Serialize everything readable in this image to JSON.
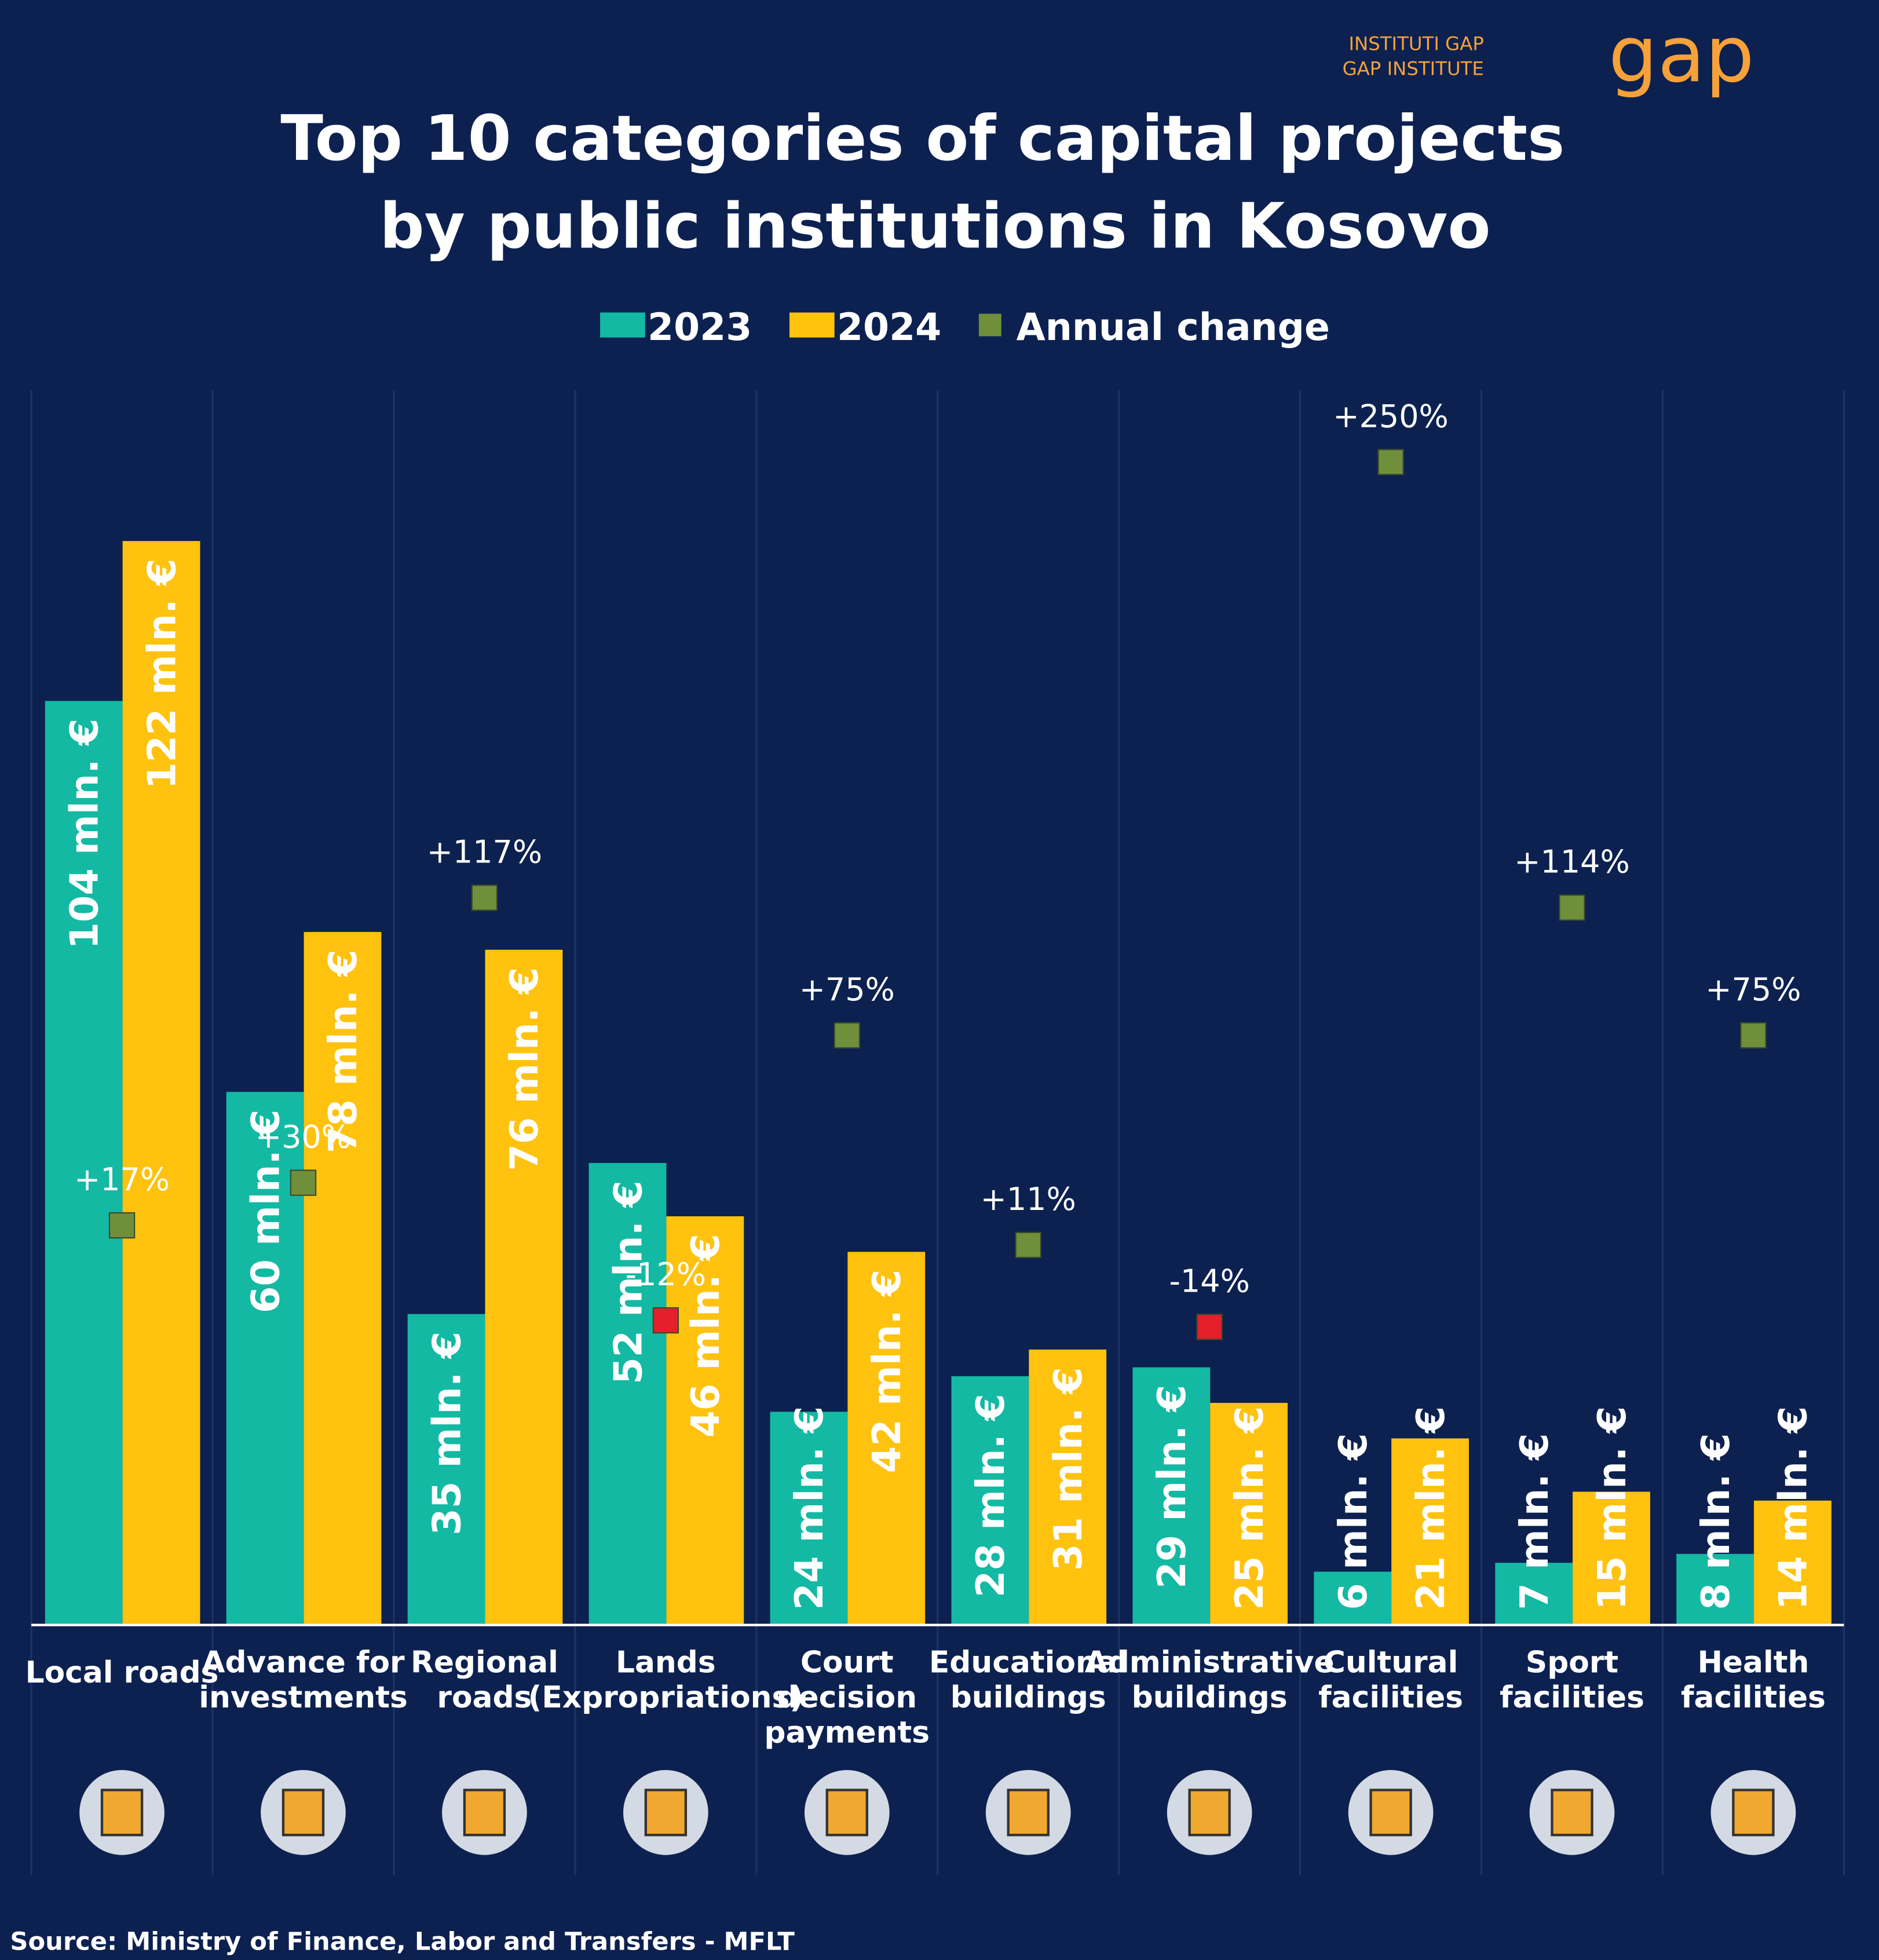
{
  "chart_data": {
    "type": "bar",
    "title": [
      "Top 10 categories of capital projects",
      "by public institutions in Kosovo"
    ],
    "logo": {
      "lines": [
        "INSTITUTI GAP",
        "GAP INSTITUTE"
      ],
      "mark": "gap"
    },
    "source": "Source: Ministry of Finance, Labor and Transfers - MFLT",
    "categories": [
      [
        "Local roads"
      ],
      [
        "Advance for",
        "investments"
      ],
      [
        "Regional",
        "roads"
      ],
      [
        "Lands",
        "(Expropriations)"
      ],
      [
        "Court",
        "decision",
        "payments"
      ],
      [
        "Educational",
        "buildings"
      ],
      [
        "Administrative",
        "buildings"
      ],
      [
        "Cultural",
        "facilities"
      ],
      [
        "Sport",
        "facilities"
      ],
      [
        "Health",
        "facilities"
      ]
    ],
    "series": [
      {
        "name": "2023",
        "color": "#13b9a3",
        "values": [
          104,
          60,
          35,
          52,
          24,
          28,
          29,
          6,
          7,
          8
        ],
        "value_labels": [
          "104 mln. €",
          "60 mln. €",
          "35 mln. €",
          "52 mln. €",
          "24 mln. €",
          "28 mln. €",
          "29 mln. €",
          "6 mln. €",
          "7 mln. €",
          "8 mln. €"
        ]
      },
      {
        "name": "2024",
        "color": "#ffc20e",
        "values": [
          122,
          78,
          76,
          46,
          42,
          31,
          25,
          21,
          15,
          14
        ],
        "value_labels": [
          "122 mln. €",
          "78 mln. €",
          "76 mln. €",
          "46 mln. €",
          "42 mln. €",
          "31 mln. €",
          "25 mln. €",
          "21 mln. €",
          "15 mln. €",
          "14 mln. €"
        ]
      },
      {
        "name": "Annual change",
        "type": "scatter",
        "axis": "y2",
        "color": "#6f8f3b",
        "negative_color": "#e3202b",
        "values": [
          17,
          30,
          117,
          -12,
          75,
          11,
          -14,
          250,
          114,
          75
        ],
        "value_labels": [
          "+17%",
          "+30%",
          "+117%",
          "-12%",
          "+75%",
          "+11%",
          "-14%",
          "+250%",
          "+114%",
          "+75%"
        ]
      }
    ],
    "ylim": [
      0,
      139
    ],
    "y2lim": [
      -105,
      272
    ]
  }
}
